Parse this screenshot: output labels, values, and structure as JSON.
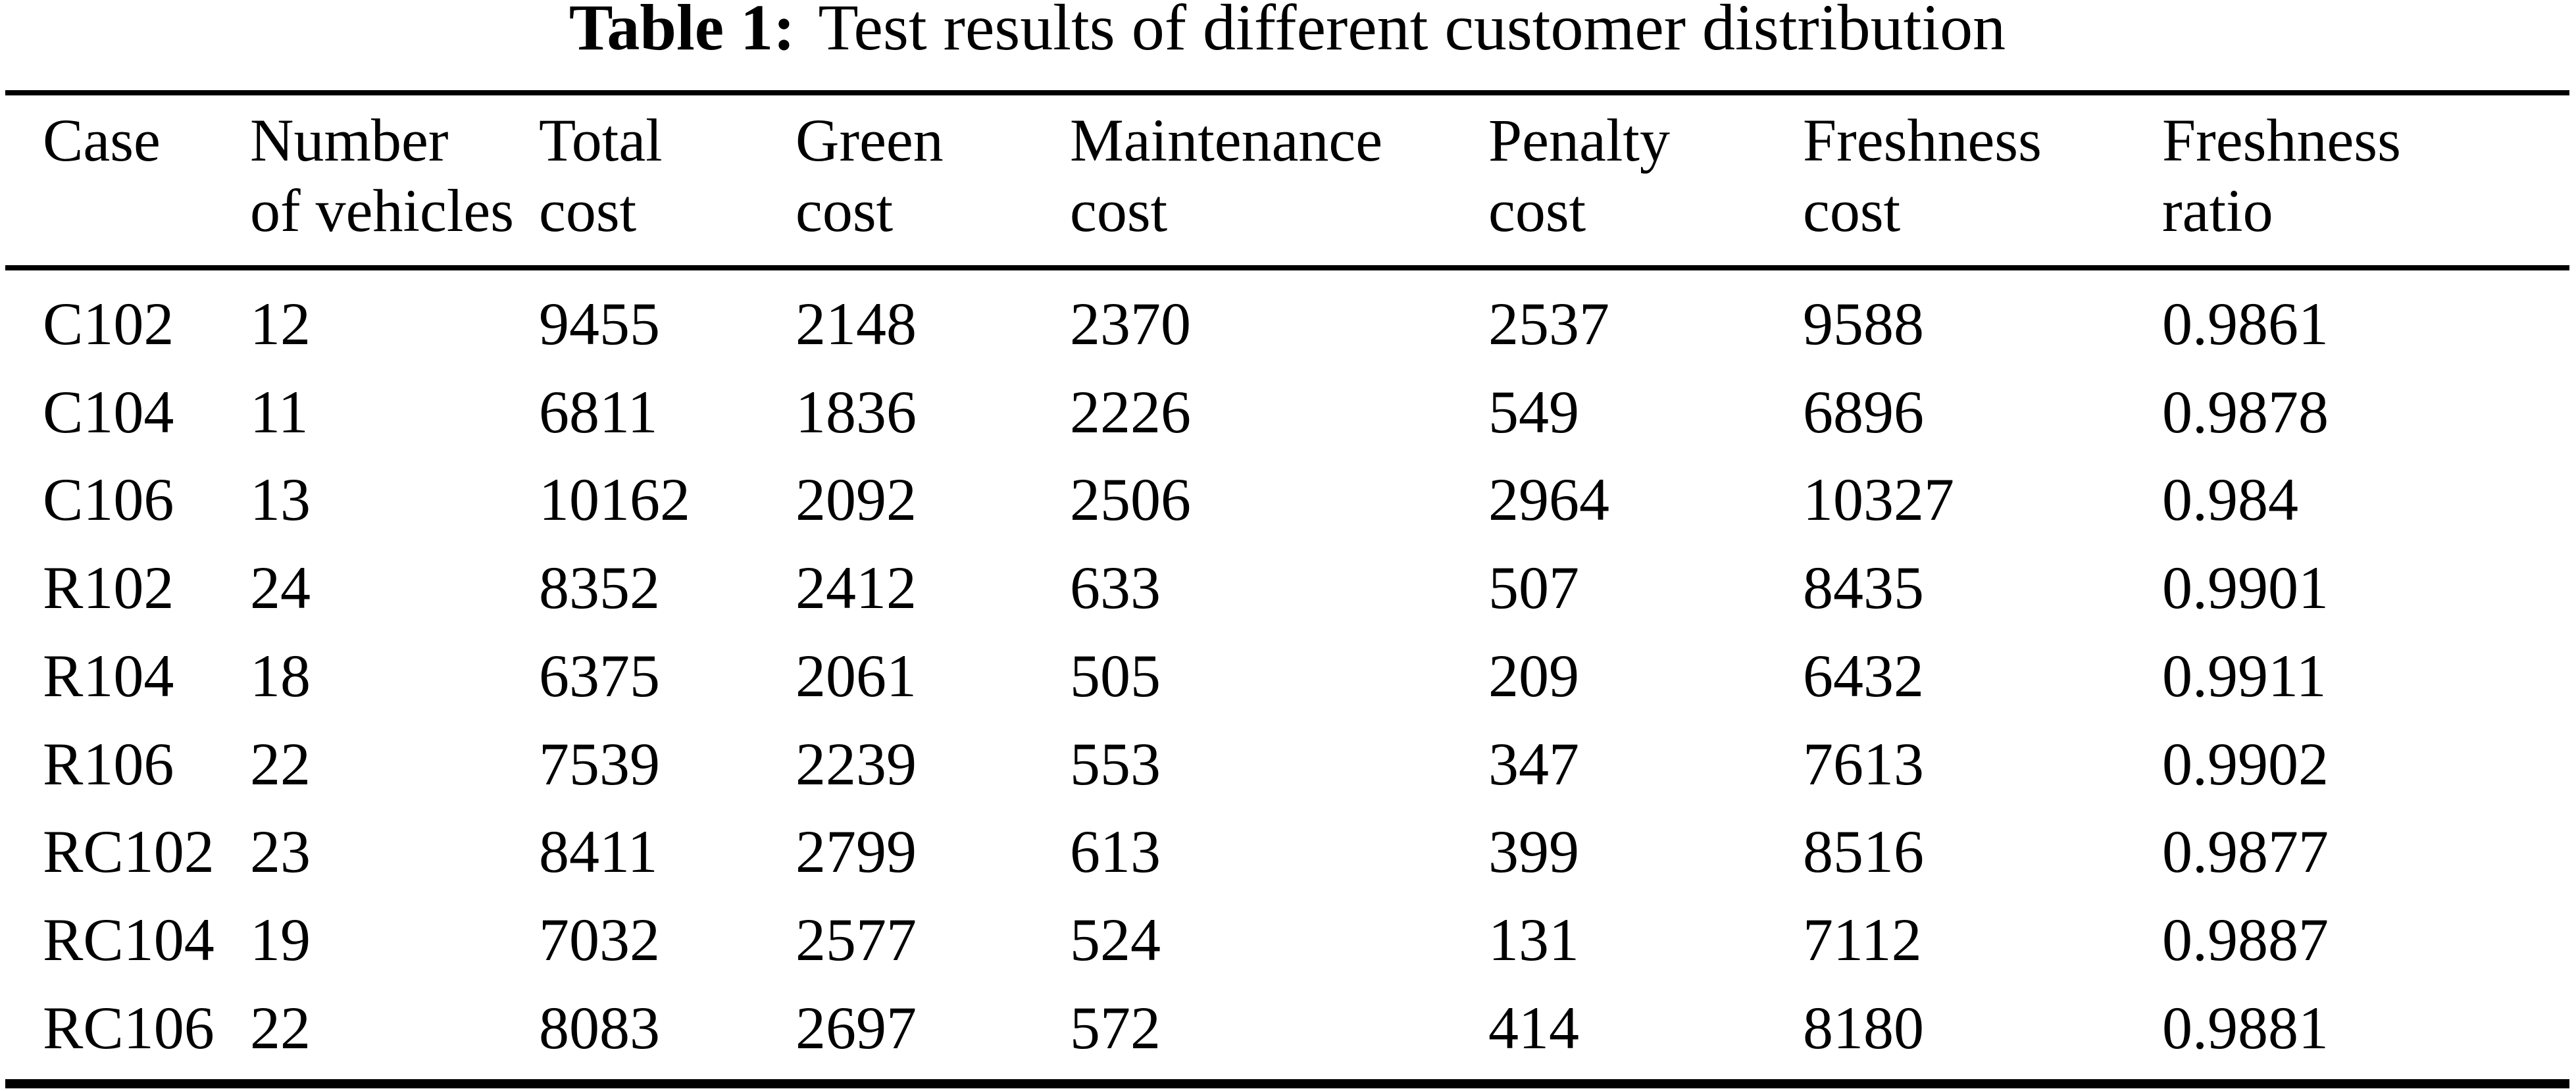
{
  "title": {
    "label": "Table 1:",
    "text": "Test results of different customer distribution"
  },
  "colors": {
    "background": "#ffffff",
    "text": "#000000",
    "rule": "#000000"
  },
  "table": {
    "headers": [
      {
        "line1": "Case",
        "line2": ""
      },
      {
        "line1": "Number",
        "line2": "of vehicles"
      },
      {
        "line1": "Total",
        "line2": "cost"
      },
      {
        "line1": "Green",
        "line2": "cost"
      },
      {
        "line1": "Maintenance",
        "line2": "cost"
      },
      {
        "line1": "Penalty",
        "line2": "cost"
      },
      {
        "line1": "Freshness",
        "line2": "cost"
      },
      {
        "line1": "Freshness",
        "line2": "ratio"
      }
    ],
    "rows": [
      [
        "C102",
        "12",
        "9455",
        "2148",
        "2370",
        "2537",
        "9588",
        "0.9861"
      ],
      [
        "C104",
        "11",
        "6811",
        "1836",
        "2226",
        "549",
        "6896",
        "0.9878"
      ],
      [
        "C106",
        "13",
        "10162",
        "2092",
        "2506",
        "2964",
        "10327",
        "0.984"
      ],
      [
        "R102",
        "24",
        "8352",
        "2412",
        "633",
        "507",
        "8435",
        "0.9901"
      ],
      [
        "R104",
        "18",
        "6375",
        "2061",
        "505",
        "209",
        "6432",
        "0.9911"
      ],
      [
        "R106",
        "22",
        "7539",
        "2239",
        "553",
        "347",
        "7613",
        "0.9902"
      ],
      [
        "RC102",
        "23",
        "8411",
        "2799",
        "613",
        "399",
        "8516",
        "0.9877"
      ],
      [
        "RC104",
        "19",
        "7032",
        "2577",
        "524",
        "131",
        "7112",
        "0.9887"
      ],
      [
        "RC106",
        "22",
        "8083",
        "2697",
        "572",
        "414",
        "8180",
        "0.9881"
      ]
    ]
  }
}
